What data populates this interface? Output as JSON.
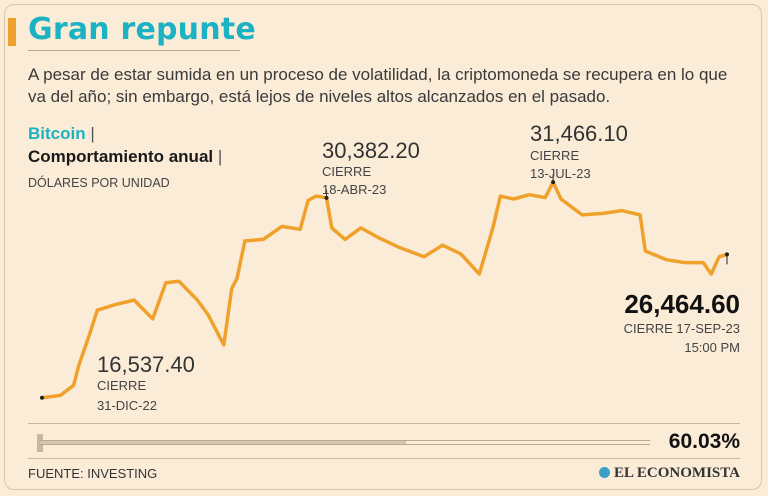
{
  "header": {
    "title": "Gran repunte",
    "subtitle": "A pesar de estar sumida en un proceso de volatilidad, la criptomoneda se recupera en lo que va del año; sin embargo, está lejos de niveles altos alcanzados en el pasado."
  },
  "legend": {
    "series_name": "Bitcoin",
    "separator": "|",
    "description": "Comportamiento anual",
    "units": "DÓLARES POR UNIDAD"
  },
  "annotations": {
    "start": {
      "value": "16,537.40",
      "label1": "CIERRE",
      "label2": "31-DIC-22"
    },
    "apr": {
      "value": "30,382.20",
      "label1": "CIERRE",
      "label2": "18-ABR-23"
    },
    "jul": {
      "value": "31,466.10",
      "label1": "CIERRE",
      "label2": "13-JUL-23"
    },
    "last": {
      "value": "26,464.60",
      "label1": "CIERRE 17-SEP-23",
      "label2": "15:00 PM"
    }
  },
  "change": {
    "percent": "60.03%",
    "fraction": 0.6003
  },
  "footer": {
    "source": "FUENTE: INVESTING",
    "brand": "EL ECONOMISTA"
  },
  "colors": {
    "line": "#f0a12b",
    "accent": "#1bb3c4",
    "background": "#fbecd8"
  },
  "chart_data": {
    "type": "line",
    "title": "Bitcoin",
    "ylabel": "DÓLARES POR UNIDAD",
    "ylim": [
      15000,
      33000
    ],
    "series": [
      {
        "name": "Bitcoin",
        "x": [
          "2022-12-31",
          "2023-01-07",
          "2023-01-12",
          "2023-01-14",
          "2023-01-18",
          "2023-01-21",
          "2023-01-28",
          "2023-02-04",
          "2023-02-11",
          "2023-02-16",
          "2023-02-21",
          "2023-02-28",
          "2023-03-04",
          "2023-03-10",
          "2023-03-13",
          "2023-03-15",
          "2023-03-18",
          "2023-03-25",
          "2023-04-01",
          "2023-04-08",
          "2023-04-11",
          "2023-04-14",
          "2023-04-18",
          "2023-04-20",
          "2023-04-25",
          "2023-05-01",
          "2023-05-08",
          "2023-05-15",
          "2023-05-25",
          "2023-06-01",
          "2023-06-08",
          "2023-06-15",
          "2023-06-20",
          "2023-06-23",
          "2023-06-28",
          "2023-07-04",
          "2023-07-10",
          "2023-07-13",
          "2023-07-16",
          "2023-07-24",
          "2023-08-01",
          "2023-08-08",
          "2023-08-15",
          "2023-08-17",
          "2023-08-25",
          "2023-09-01",
          "2023-09-08",
          "2023-09-11",
          "2023-09-14",
          "2023-09-17"
        ],
        "values": [
          16537.4,
          16700,
          17400,
          18800,
          20900,
          22600,
          23000,
          23300,
          22000,
          24500,
          24600,
          23300,
          22300,
          20200,
          24100,
          24800,
          27400,
          27500,
          28400,
          28200,
          30200,
          30500,
          30382.2,
          28300,
          27500,
          28300,
          27600,
          27000,
          26300,
          27100,
          26500,
          25100,
          28200,
          30500,
          30300,
          30600,
          30400,
          31466.1,
          30300,
          29200,
          29300,
          29500,
          29200,
          26700,
          26100,
          25900,
          25900,
          25100,
          26300,
          26464.6
        ]
      }
    ]
  }
}
